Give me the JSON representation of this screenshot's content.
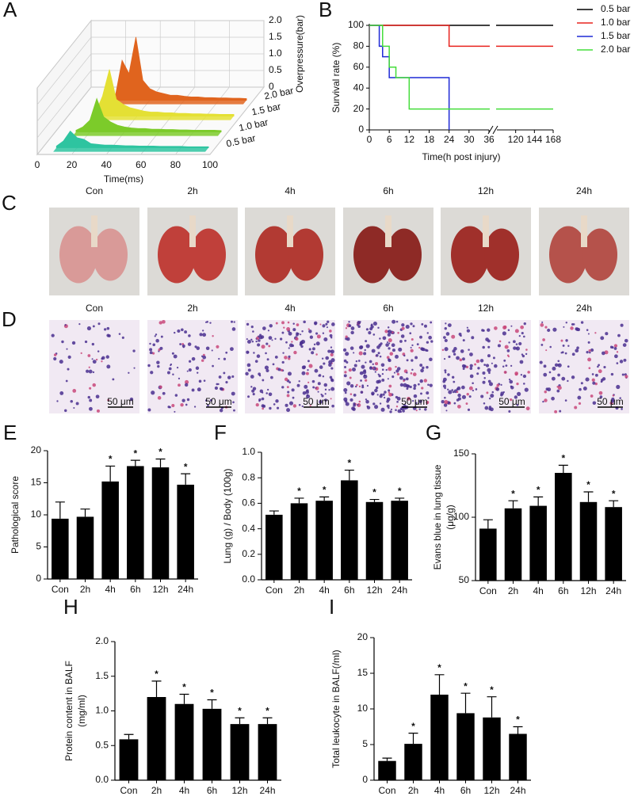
{
  "chart_data": [
    {
      "panel": "A",
      "type": "waterfall",
      "xlabel": "Time(ms)",
      "zlabel": "Overpressure(bar)",
      "x": [
        0,
        4,
        8,
        12,
        16,
        20,
        24,
        28,
        32,
        36,
        40,
        44,
        48,
        52,
        56,
        60,
        64,
        68,
        72,
        76,
        80,
        84,
        88,
        92,
        96,
        100
      ],
      "xlim": [
        0,
        100
      ],
      "xticks": [
        0,
        20,
        40,
        60,
        80,
        100
      ],
      "zlim": [
        0,
        2
      ],
      "zticks": [
        0,
        0.5,
        {
          "value": 1,
          "label": "1.0"
        },
        1.5,
        {
          "value": 2,
          "label": "2.0"
        }
      ],
      "series": [
        {
          "name": "0.5 bar",
          "color": "#2ec4a0",
          "values": [
            null,
            null,
            0.05,
            0.2,
            0.5,
            0.3,
            0.25,
            0.12,
            0.1,
            0.08,
            0.08,
            0.07,
            0.06,
            0.06,
            0.05,
            0.05,
            0.05,
            0.04,
            0.04,
            0.04,
            0.04,
            0.03,
            0.03,
            0.03,
            0.03,
            null
          ]
        },
        {
          "name": "1.0 bar",
          "color": "#7ccb2a",
          "values": [
            null,
            null,
            null,
            0.05,
            0.15,
            0.35,
            1.0,
            0.45,
            0.3,
            0.2,
            0.15,
            0.12,
            0.1,
            0.1,
            0.08,
            0.08,
            0.07,
            0.07,
            0.06,
            0.06,
            0.05,
            0.05,
            0.05,
            0.05,
            0.04,
            null
          ]
        },
        {
          "name": "1.5 bar",
          "color": "#e4e034",
          "values": [
            null,
            null,
            null,
            null,
            0.1,
            0.6,
            1.4,
            0.5,
            0.35,
            0.25,
            0.2,
            0.15,
            0.12,
            0.12,
            0.1,
            0.1,
            0.08,
            0.08,
            0.07,
            0.07,
            0.06,
            0.06,
            0.05,
            0.05,
            0.05,
            null
          ]
        },
        {
          "name": "2.0 bar",
          "color": "#e0641e",
          "values": [
            null,
            null,
            null,
            null,
            null,
            0.1,
            1.2,
            0.8,
            1.9,
            0.6,
            0.35,
            0.25,
            0.2,
            0.15,
            0.15,
            0.12,
            0.1,
            0.1,
            0.08,
            0.08,
            0.07,
            0.07,
            0.06,
            0.06,
            0.05,
            null
          ]
        }
      ]
    },
    {
      "panel": "B",
      "type": "step",
      "xlabel": "Time(h post injury)",
      "ylabel": "Survival rate (%)",
      "xlim": [
        0,
        168
      ],
      "xbreak": [
        36,
        96
      ],
      "xticks": [
        0,
        6,
        12,
        18,
        24,
        30,
        36,
        120,
        144,
        168
      ],
      "ylim": [
        0,
        100
      ],
      "yticks": [
        0,
        20,
        40,
        60,
        80,
        100
      ],
      "legend": "top-right",
      "series": [
        {
          "name": "0.5 bar",
          "color": "#000000",
          "x": [
            0,
            168
          ],
          "values": [
            100,
            100
          ]
        },
        {
          "name": "1.0 bar",
          "color": "#e8231e",
          "x": [
            0,
            24,
            24,
            168
          ],
          "values": [
            100,
            100,
            80,
            80
          ]
        },
        {
          "name": "1.5 bar",
          "color": "#1f2ad6",
          "x": [
            0,
            3,
            3,
            4,
            4,
            6,
            6,
            24,
            24
          ],
          "values": [
            100,
            100,
            80,
            80,
            70,
            70,
            50,
            50,
            0
          ]
        },
        {
          "name": "2.0 bar",
          "color": "#44dd3a",
          "x": [
            0,
            4,
            4,
            6,
            6,
            8,
            8,
            12,
            12,
            168
          ],
          "values": [
            100,
            100,
            80,
            80,
            60,
            60,
            50,
            50,
            20,
            20
          ]
        }
      ]
    },
    {
      "panel": "E",
      "type": "bar",
      "ylabel": [
        "Pathological score"
      ],
      "color": "#000000",
      "marker": "*",
      "categories": [
        "Con",
        "2h",
        "4h",
        "6h",
        "12h",
        "24h"
      ],
      "values": [
        9.4,
        9.7,
        15.2,
        17.6,
        17.4,
        14.7
      ],
      "errors": [
        2.6,
        1.2,
        2.4,
        0.9,
        1.3,
        1.7
      ],
      "significant": [
        false,
        false,
        true,
        true,
        true,
        true
      ],
      "ylim": [
        0,
        20
      ],
      "yticks": [
        0,
        5,
        10,
        15,
        20
      ]
    },
    {
      "panel": "F",
      "type": "bar",
      "ylabel": [
        "Lung (g) / Body (100g)"
      ],
      "color": "#000000",
      "marker": "*",
      "categories": [
        "Con",
        "2h",
        "4h",
        "6h",
        "12h",
        "24h"
      ],
      "values": [
        0.51,
        0.6,
        0.62,
        0.78,
        0.61,
        0.62
      ],
      "errors": [
        0.03,
        0.04,
        0.03,
        0.08,
        0.02,
        0.02
      ],
      "significant": [
        false,
        true,
        true,
        true,
        true,
        true
      ],
      "ylim": [
        0,
        1
      ],
      "yticks": [
        {
          "value": 0,
          "label": "0.0"
        },
        0.2,
        0.4,
        0.6,
        0.8,
        {
          "value": 1,
          "label": "1.0"
        }
      ]
    },
    {
      "panel": "G",
      "type": "bar",
      "ylabel": [
        "Evans blue in lung tissue",
        "(μg/g)"
      ],
      "color": "#000000",
      "marker": "*",
      "categories": [
        "Con",
        "2h",
        "4h",
        "6h",
        "12h",
        "24h"
      ],
      "values": [
        91,
        107,
        109,
        135,
        112,
        108
      ],
      "errors": [
        7,
        6,
        7,
        6,
        8,
        5
      ],
      "significant": [
        false,
        true,
        true,
        true,
        true,
        true
      ],
      "ylim": [
        50,
        150
      ],
      "yticks": [
        50,
        100,
        150
      ]
    },
    {
      "panel": "H",
      "type": "bar",
      "ylabel": [
        "Protein content in BALF",
        "(mg/ml)"
      ],
      "color": "#000000",
      "marker": "*",
      "categories": [
        "Con",
        "2h",
        "4h",
        "6h",
        "12h",
        "24h"
      ],
      "values": [
        0.59,
        1.2,
        1.1,
        1.03,
        0.81,
        0.81
      ],
      "errors": [
        0.07,
        0.23,
        0.14,
        0.13,
        0.09,
        0.09
      ],
      "significant": [
        false,
        true,
        true,
        true,
        true,
        true
      ],
      "ylim": [
        0,
        2
      ],
      "yticks": [
        {
          "value": 0,
          "label": "0.0"
        },
        0.5,
        {
          "value": 1,
          "label": "1.0"
        },
        1.5,
        {
          "value": 2,
          "label": "2.0"
        }
      ]
    },
    {
      "panel": "I",
      "type": "bar",
      "ylabel": [
        "Total leukocyte in BALF(/ml)"
      ],
      "color": "#000000",
      "marker": "*",
      "categories": [
        "Con",
        "2h",
        "4h",
        "6h",
        "12h",
        "24h"
      ],
      "values": [
        2.7,
        5.1,
        12.0,
        9.4,
        8.8,
        6.5
      ],
      "errors": [
        0.4,
        1.5,
        2.8,
        2.8,
        2.9,
        1.0
      ],
      "significant": [
        false,
        true,
        true,
        true,
        true,
        true
      ],
      "ylim": [
        0,
        20
      ],
      "yticks": [
        0,
        5,
        10,
        15,
        20
      ]
    }
  ],
  "photo_panels": [
    {
      "panel": "C",
      "kind": "lung",
      "labels": [
        "Con",
        "2h",
        "4h",
        "6h",
        "12h",
        "24h"
      ]
    },
    {
      "panel": "D",
      "kind": "histology",
      "labels": [
        "Con",
        "2h",
        "4h",
        "6h",
        "12h",
        "24h"
      ],
      "scale_label": "50 μm"
    }
  ]
}
